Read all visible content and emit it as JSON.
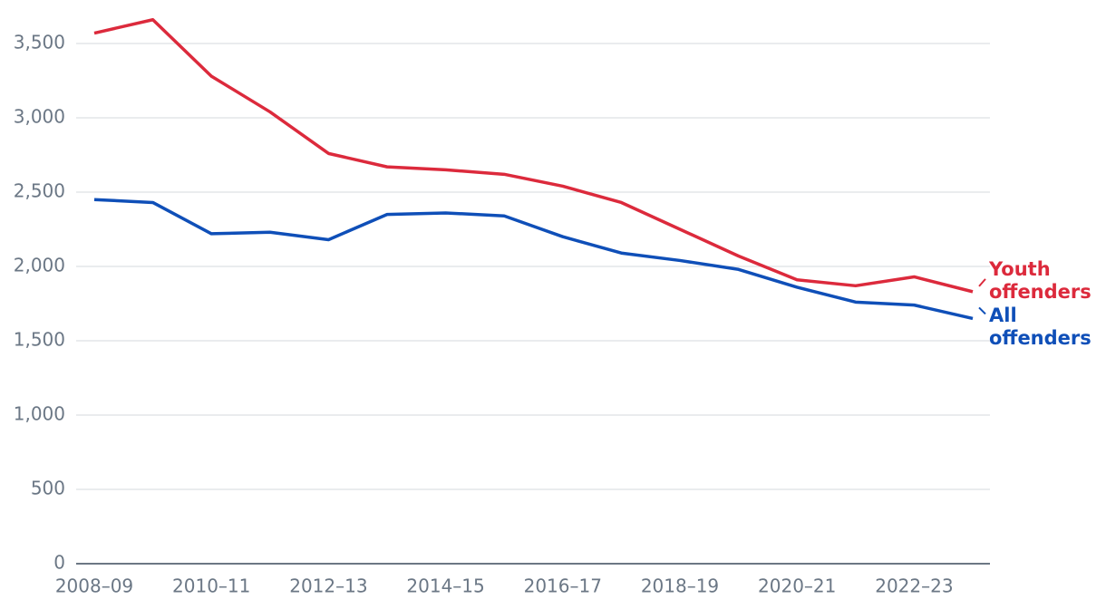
{
  "chart_data": {
    "type": "line",
    "categories": [
      "2008–09",
      null,
      "2010–11",
      null,
      "2012–13",
      null,
      "2014–15",
      null,
      "2016–17",
      null,
      "2018–19",
      null,
      "2020–21",
      null,
      "2022–23",
      null
    ],
    "series": [
      {
        "name": "Youth offenders",
        "color": "#dc2a3c",
        "values": [
          3570,
          3660,
          3280,
          3040,
          2760,
          2670,
          2650,
          2620,
          2540,
          2430,
          2250,
          2070,
          1910,
          1870,
          1930,
          1830
        ]
      },
      {
        "name": "All offenders",
        "color": "#0f4fb8",
        "values": [
          2450,
          2430,
          2220,
          2230,
          2180,
          2350,
          2360,
          2340,
          2200,
          2090,
          2040,
          1980,
          1860,
          1760,
          1740,
          1650
        ]
      }
    ],
    "ylim": [
      0,
      3500
    ],
    "yticks": [
      0,
      500,
      {
        "value": 1000,
        "label": "1,000"
      },
      {
        "value": 1500,
        "label": "1,500"
      },
      {
        "value": 2000,
        "label": "2,000"
      },
      {
        "value": 2500,
        "label": "2,500"
      },
      {
        "value": 3000,
        "label": "3,000"
      },
      {
        "value": 3500,
        "label": "3,500"
      }
    ],
    "grid": true
  }
}
